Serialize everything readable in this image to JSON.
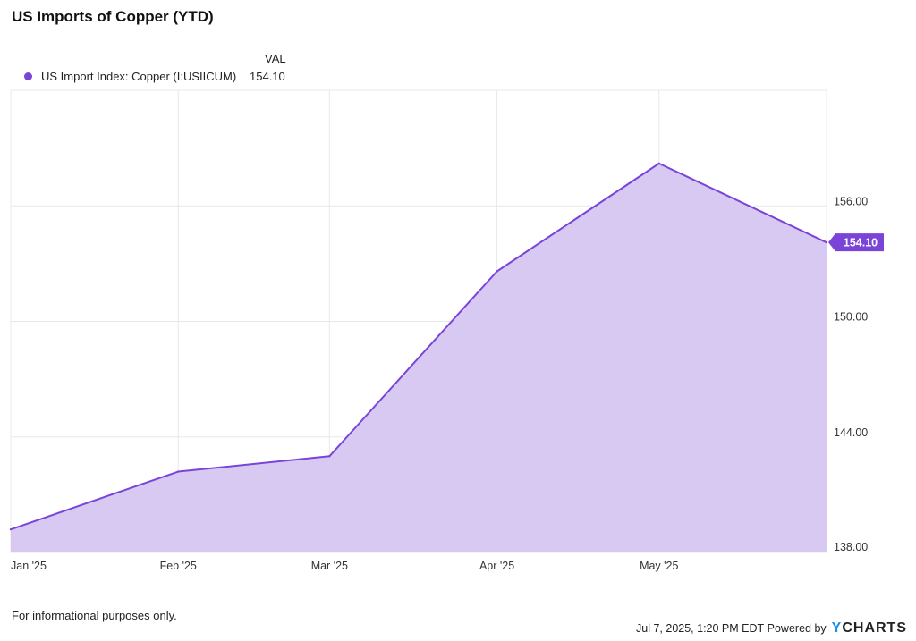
{
  "page": {
    "title": "US Imports of Copper (YTD)",
    "legend_header": "VAL",
    "footer_note": "For informational purposes only.",
    "timestamp": "Jul 7, 2025, 1:20 PM EDT",
    "powered_by": "Powered by",
    "brand_first": "Y",
    "brand_rest": "CHARTS"
  },
  "colors": {
    "series": "#7a44d8",
    "fill": "#d8c9f2",
    "grid": "#e8e8e8",
    "axis_text": "#333333"
  },
  "chart_data": {
    "type": "area",
    "title": "US Imports of Copper (YTD)",
    "x": [
      "2025-01-01",
      "2025-02-01",
      "2025-03-01",
      "2025-04-01",
      "2025-05-01",
      "2025-06-01"
    ],
    "x_ticks": [
      {
        "date": "2025-01-01",
        "label": "Jan '25"
      },
      {
        "date": "2025-02-01",
        "label": "Feb '25"
      },
      {
        "date": "2025-03-01",
        "label": "Mar '25"
      },
      {
        "date": "2025-04-01",
        "label": "Apr '25"
      },
      {
        "date": "2025-05-01",
        "label": "May '25"
      }
    ],
    "x_range": [
      "2025-01-01",
      "2025-06-01"
    ],
    "series": [
      {
        "name": "US Import Index: Copper (I:USIICUM)",
        "values": [
          139.2,
          142.2,
          143.0,
          152.6,
          158.2,
          154.1
        ],
        "last_value_label": "154.10"
      }
    ],
    "y_ticks": [
      138,
      144,
      150,
      156
    ],
    "y_tick_labels": [
      "138.00",
      "144.00",
      "150.00",
      "156.00"
    ],
    "ylim": [
      138,
      162
    ],
    "y_axis_position": "right",
    "grid": true,
    "legend": "top-left"
  }
}
